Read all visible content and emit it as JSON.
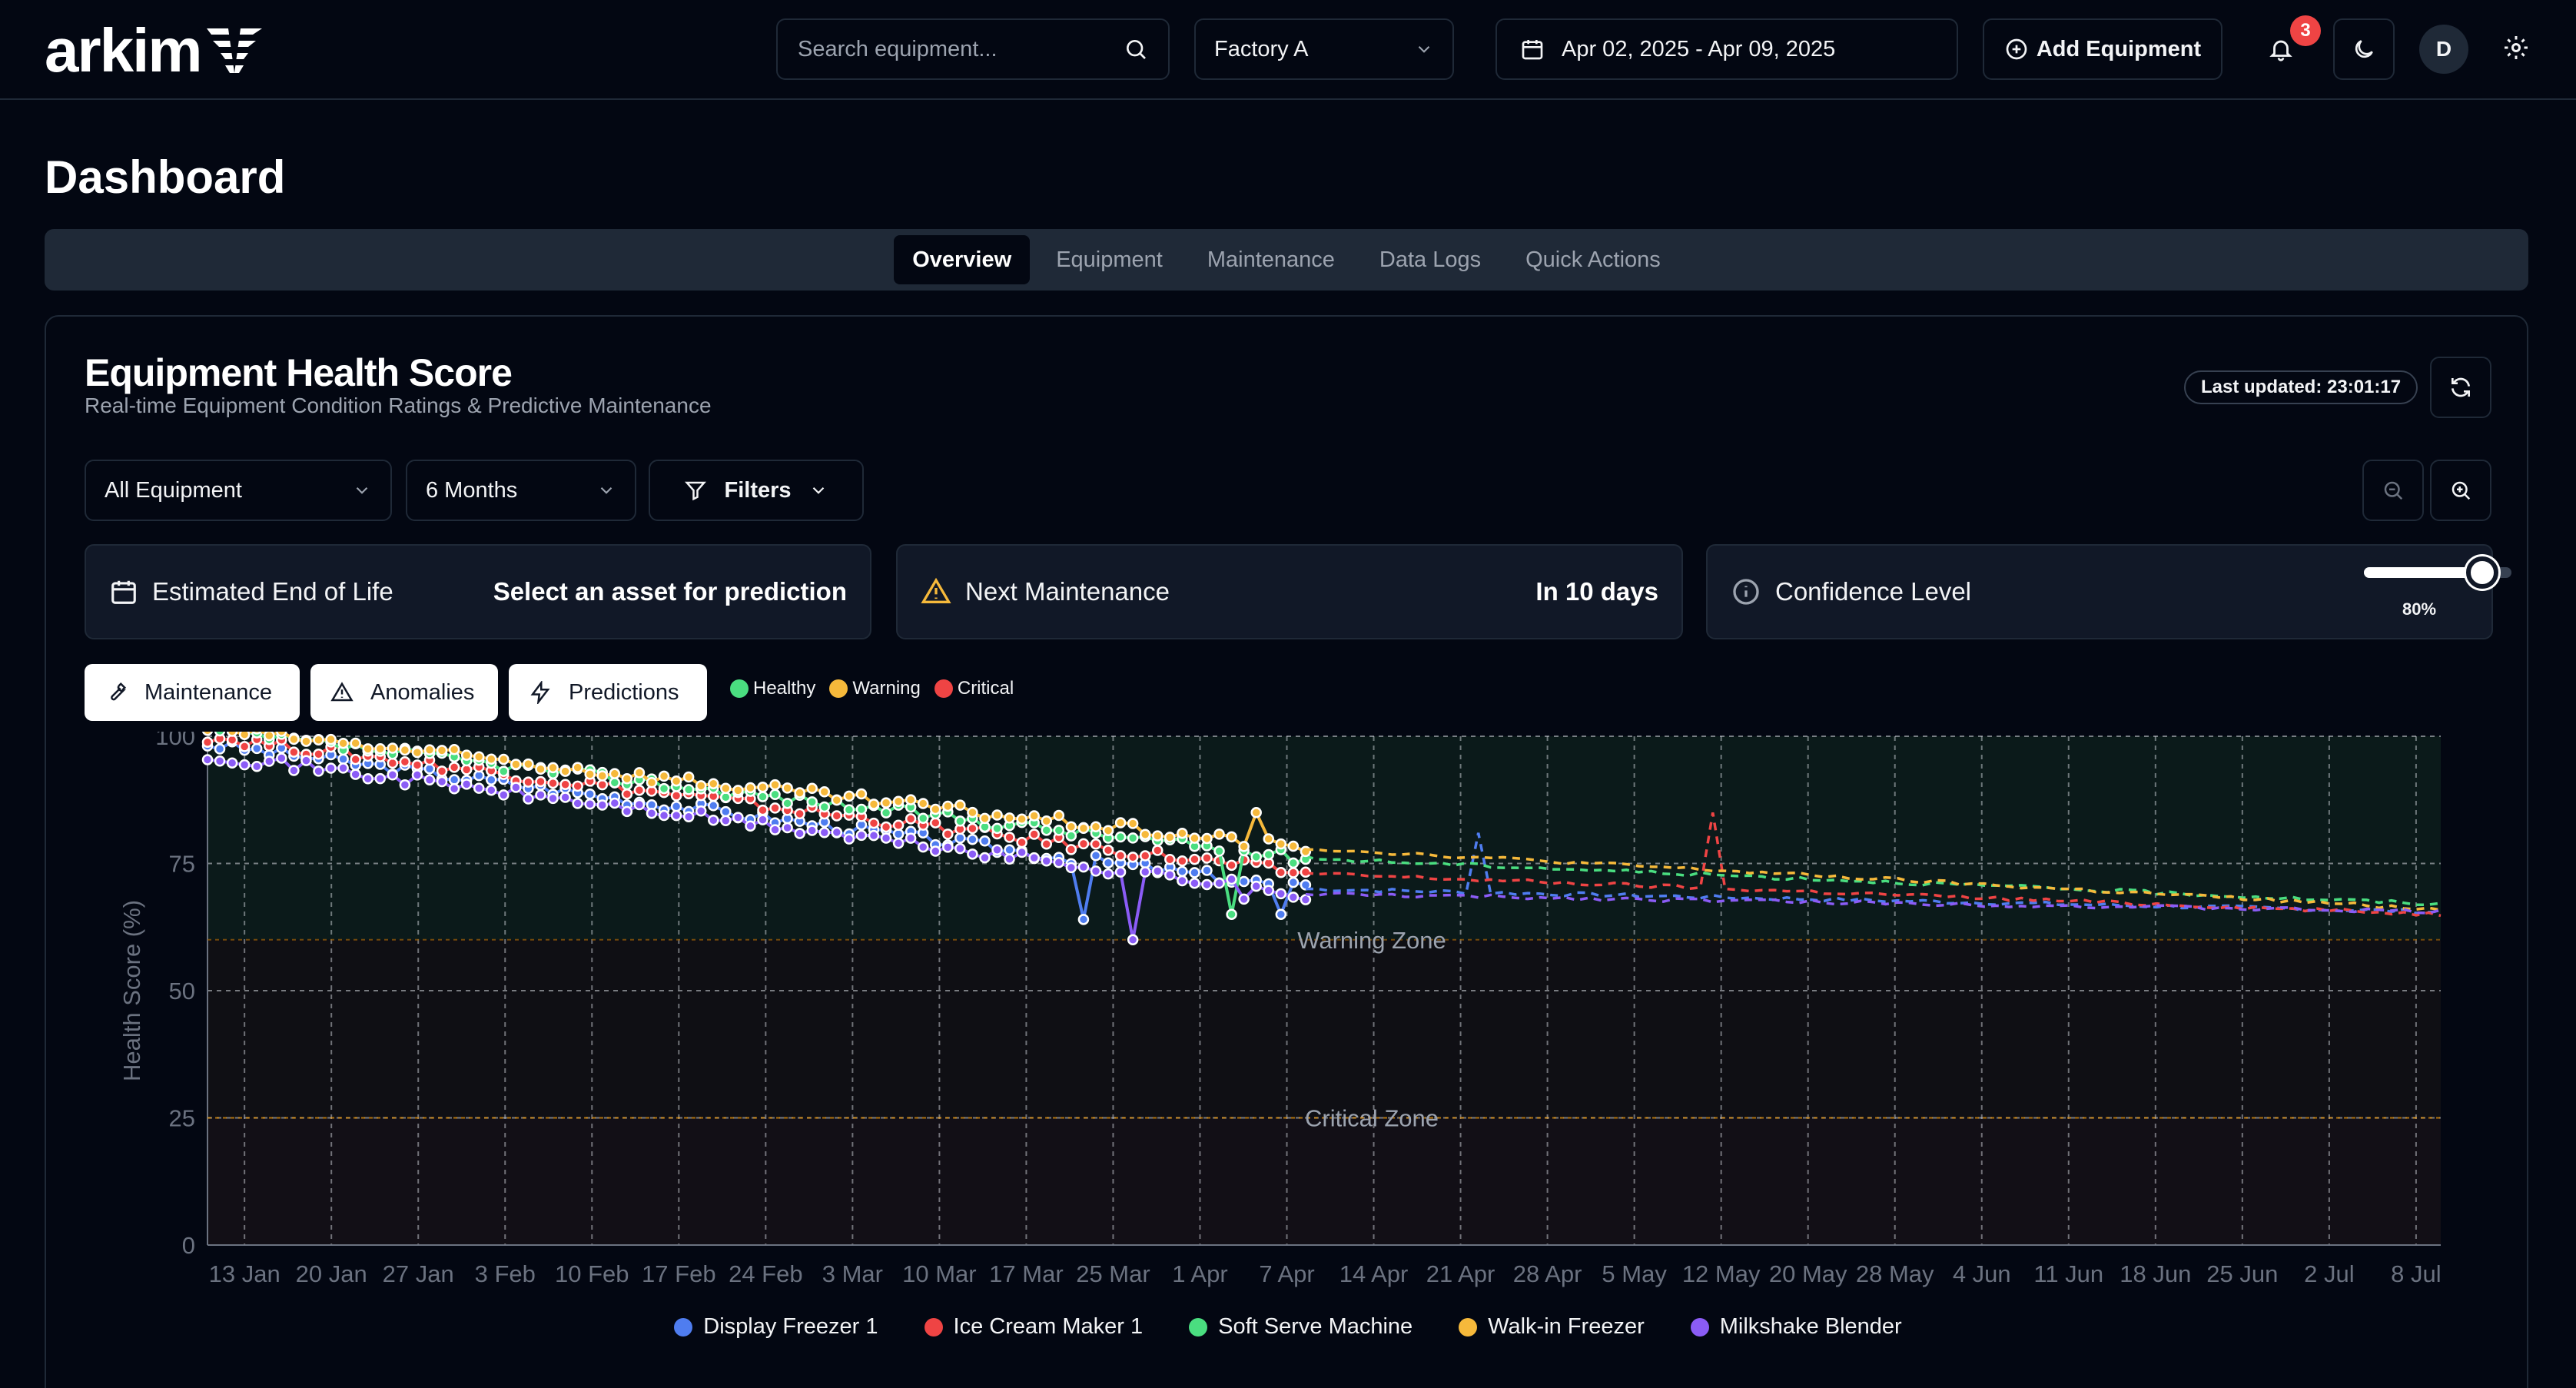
{
  "header": {
    "logo_text": "arkim",
    "search_placeholder": "Search equipment...",
    "factory": "Factory A",
    "date_range": "Apr 02, 2025 - Apr 09, 2025",
    "add_equipment": "Add Equipment",
    "notification_count": "3",
    "avatar_initial": "D"
  },
  "page": {
    "title": "Dashboard"
  },
  "tabs": [
    {
      "label": "Overview",
      "active": true
    },
    {
      "label": "Equipment",
      "active": false
    },
    {
      "label": "Maintenance",
      "active": false
    },
    {
      "label": "Data Logs",
      "active": false
    },
    {
      "label": "Quick Actions",
      "active": false
    }
  ],
  "card": {
    "title": "Equipment Health Score",
    "subtitle": "Real-time Equipment Condition Ratings & Predictive Maintenance",
    "last_updated": "Last updated: 23:01:17",
    "equipment_select": "All Equipment",
    "range_select": "6 Months",
    "filters_label": "Filters"
  },
  "info": {
    "eol_label": "Estimated End of Life",
    "eol_value": "Select an asset for prediction",
    "maint_label": "Next Maintenance",
    "maint_value": "In 10 days",
    "conf_label": "Confidence Level",
    "conf_value": "80%",
    "conf_fraction": 0.8
  },
  "toggles": {
    "maintenance": "Maintenance",
    "anomalies": "Anomalies",
    "predictions": "Predictions"
  },
  "status_legend": [
    {
      "label": "Healthy",
      "color": "#4ade80"
    },
    {
      "label": "Warning",
      "color": "#f6b93b"
    },
    {
      "label": "Critical",
      "color": "#ef4444"
    }
  ],
  "colors": {
    "background": "#030712",
    "panel": "#111827",
    "border": "#1f2937",
    "warning_zone_line": "#a16207",
    "critical_zone_line": "#f59e0b"
  },
  "icons": {
    "search": "search-icon",
    "chevron": "chevron-down-icon",
    "calendar": "calendar-icon",
    "add": "plus-circle-icon",
    "bell": "bell-icon",
    "moon": "moon-icon",
    "gear": "gear-icon",
    "refresh": "refresh-icon",
    "filter": "filter-icon",
    "zoom_out": "zoom-out-icon",
    "zoom_in": "zoom-in-icon",
    "warning": "warning-triangle-icon",
    "info": "info-icon",
    "wrench": "wrench-icon",
    "bolt": "bolt-icon"
  },
  "chart_data": {
    "type": "line",
    "ylabel": "Health Score (%)",
    "ylim": [
      0,
      100
    ],
    "yticks": [
      0,
      25,
      50,
      75,
      100
    ],
    "xticks": [
      "13 Jan",
      "20 Jan",
      "27 Jan",
      "3 Feb",
      "10 Feb",
      "17 Feb",
      "24 Feb",
      "3 Mar",
      "10 Mar",
      "17 Mar",
      "25 Mar",
      "1 Apr",
      "7 Apr",
      "14 Apr",
      "21 Apr",
      "28 Apr",
      "5 May",
      "12 May",
      "20 May",
      "28 May",
      "4 Jun",
      "11 Jun",
      "18 Jun",
      "25 Jun",
      "2 Jul",
      "8 Jul"
    ],
    "xlim": [
      "2025-01-10",
      "2025-07-10"
    ],
    "grid": true,
    "legend": "bottom",
    "zones": [
      {
        "label": "Warning Zone",
        "y": 60
      },
      {
        "label": "Critical Zone",
        "y": 25
      }
    ],
    "observed_end": "2025-04-09",
    "series": [
      {
        "name": "Display Freezer 1",
        "color": "#4f7df0",
        "start": [
          98.5,
          "2025-01-10"
        ],
        "end_observed": [
          70,
          "2025-04-09"
        ],
        "end_predicted": [
          65.5,
          "2025-07-10"
        ],
        "anomalies": [
          {
            "x": "2025-03-22",
            "y": 64
          },
          {
            "x": "2025-04-07",
            "y": 65
          },
          {
            "x": "2025-04-23",
            "y": 81
          }
        ]
      },
      {
        "name": "Ice Cream Maker 1",
        "color": "#ef4444",
        "start": [
          100,
          "2025-01-10"
        ],
        "end_observed": [
          73,
          "2025-04-09"
        ],
        "end_predicted": [
          65,
          "2025-07-10"
        ],
        "anomalies": [
          {
            "x": "2025-05-12",
            "y": 85
          }
        ]
      },
      {
        "name": "Soft Serve Machine",
        "color": "#4ade80",
        "start": [
          101,
          "2025-01-10"
        ],
        "end_observed": [
          76,
          "2025-04-09"
        ],
        "end_predicted": [
          67,
          "2025-07-10"
        ],
        "anomalies": [
          {
            "x": "2025-04-03",
            "y": 65
          }
        ]
      },
      {
        "name": "Walk-in Freezer",
        "color": "#f6b93b",
        "start": [
          101.5,
          "2025-01-10"
        ],
        "end_observed": [
          78,
          "2025-04-09"
        ],
        "end_predicted": [
          66,
          "2025-07-10"
        ],
        "anomalies": [
          {
            "x": "2025-04-05",
            "y": 85
          }
        ]
      },
      {
        "name": "Milkshake Blender",
        "color": "#8b5cf6",
        "start": [
          96.5,
          "2025-01-10"
        ],
        "end_observed": [
          69,
          "2025-04-09"
        ],
        "end_predicted": [
          65.5,
          "2025-07-10"
        ],
        "anomalies": [
          {
            "x": "2025-03-26",
            "y": 60
          },
          {
            "x": "2025-04-04",
            "y": 68
          }
        ]
      }
    ]
  }
}
